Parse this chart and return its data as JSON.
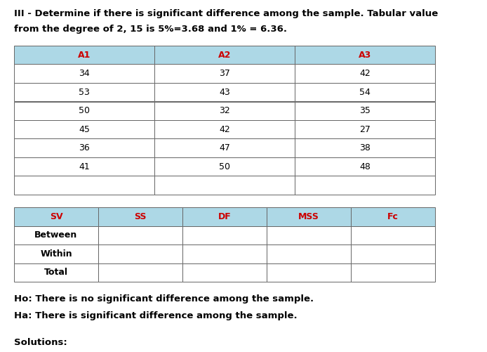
{
  "title_line1": "III - Determine if there is significant difference among the sample. Tabular value",
  "title_line2": "from the degree of 2, 15 is 5%=3.68 and 1% = 6.36.",
  "table1_headers": [
    "A1",
    "A2",
    "A3"
  ],
  "table1_data": [
    [
      "34",
      "37",
      "42"
    ],
    [
      "53",
      "43",
      "54"
    ],
    [
      "50",
      "32",
      "35"
    ],
    [
      "45",
      "42",
      "27"
    ],
    [
      "36",
      "47",
      "38"
    ],
    [
      "41",
      "50",
      "48"
    ],
    [
      "",
      "",
      ""
    ]
  ],
  "table2_headers": [
    "SV",
    "SS",
    "DF",
    "MSS",
    "Fc"
  ],
  "table2_rows": [
    "Between",
    "Within",
    "Total"
  ],
  "header_bg": "#add8e6",
  "header_text_color": "#cc0000",
  "cell_text_color": "#000000",
  "body_bg": "#ffffff",
  "border_color": "#666666",
  "ho_text": "Ho: There is no significant difference among the sample.",
  "ha_text": "Ha: There is significant difference among the sample.",
  "solutions_text": "Solutions:",
  "title_fontsize": 9.5,
  "table_fontsize": 9,
  "body_fontsize": 9.5
}
